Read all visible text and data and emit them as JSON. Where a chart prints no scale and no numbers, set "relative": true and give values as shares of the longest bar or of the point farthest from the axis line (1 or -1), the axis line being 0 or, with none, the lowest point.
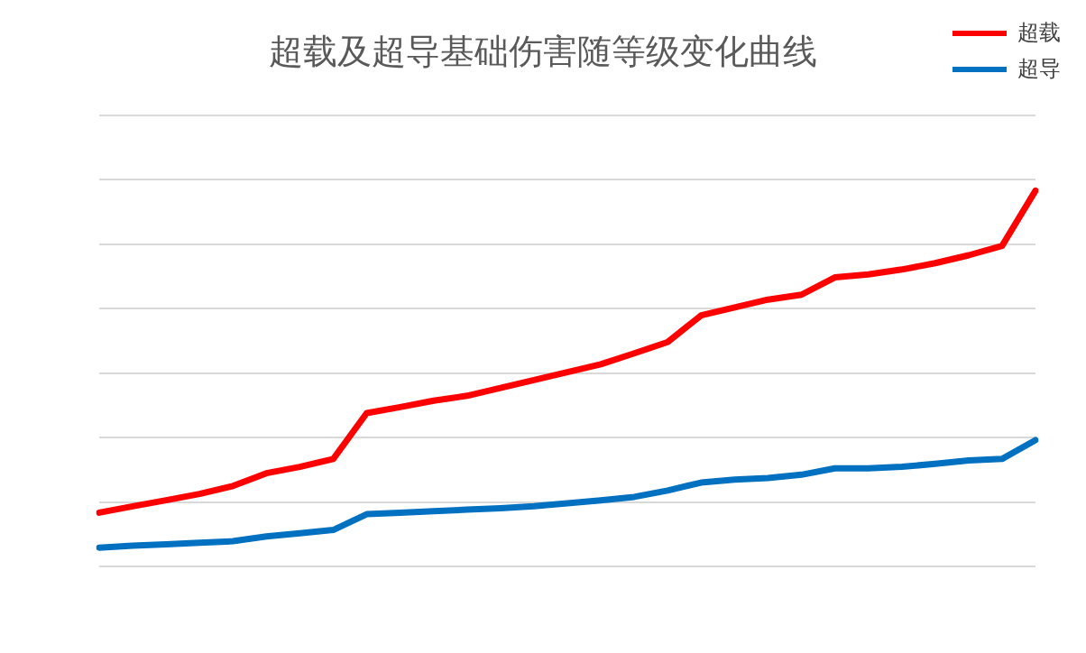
{
  "chart_data": {
    "type": "line",
    "title": "超载及超导基础伤害随等级变化曲线",
    "relative": true,
    "grid": "y",
    "legend": "top right",
    "categories": [
      null,
      null,
      null,
      null,
      null,
      null,
      null,
      null,
      null,
      null,
      null,
      null,
      null,
      null,
      null,
      null,
      null,
      null,
      null,
      null,
      null,
      null,
      null,
      null,
      null,
      null,
      null,
      null,
      null
    ],
    "series": [
      {
        "name": "超载",
        "color": "#ff0000",
        "values": [
          0.143,
          0.16,
          0.176,
          0.193,
          0.214,
          0.248,
          0.265,
          0.286,
          0.408,
          0.424,
          0.441,
          0.454,
          0.475,
          0.496,
          0.517,
          0.538,
          0.567,
          0.597,
          0.668,
          0.689,
          0.71,
          0.723,
          0.769,
          0.777,
          0.79,
          0.807,
          0.828,
          0.853,
          1
        ]
      },
      {
        "name": "超导",
        "color": "#0070c0",
        "values": [
          0.05,
          0.055,
          0.059,
          0.063,
          0.067,
          0.08,
          0.088,
          0.097,
          0.139,
          0.143,
          0.147,
          0.151,
          0.155,
          0.16,
          0.168,
          0.176,
          0.185,
          0.202,
          0.223,
          0.231,
          0.235,
          0.244,
          0.261,
          0.261,
          0.265,
          0.273,
          0.282,
          0.286,
          0.336
        ]
      }
    ]
  }
}
